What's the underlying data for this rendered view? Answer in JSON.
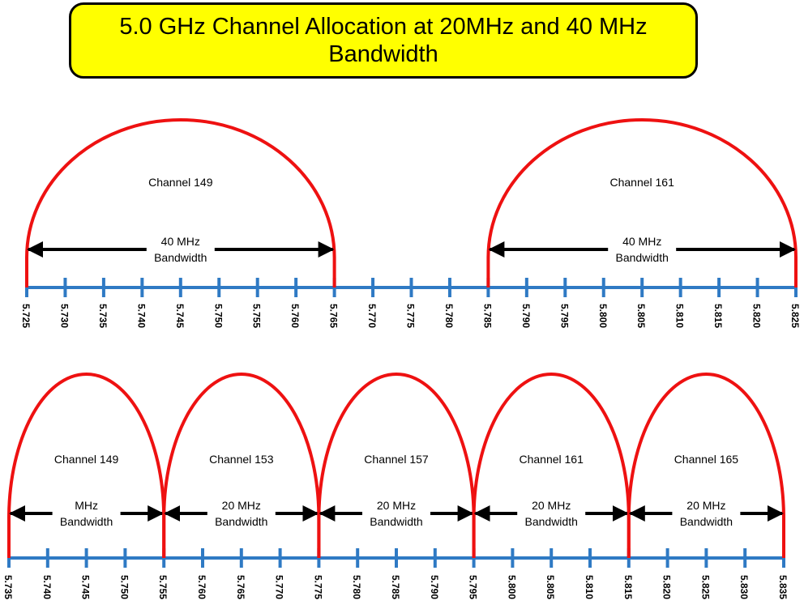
{
  "title": {
    "line1": "5.0 GHz Channel Allocation at 20MHz and 40 MHz",
    "line2": "Bandwidth"
  },
  "colors": {
    "title_background": "#ffff00",
    "arc": "#ee1111",
    "axis": "#2f7ac4",
    "arrow": "#000000",
    "text": "#000000"
  },
  "panel_top": {
    "bandwidth_mhz": 40,
    "axis_start": 5.725,
    "axis_end": 5.825,
    "tick_labels": [
      "5.725",
      "5.730",
      "5.735",
      "5.740",
      "5.745",
      "5.750",
      "5.755",
      "5.760",
      "5.765",
      "5.770",
      "5.775",
      "5.780",
      "5.785",
      "5.790",
      "5.795",
      "5.800",
      "5.805",
      "5.810",
      "5.815",
      "5.820",
      "5.825"
    ],
    "channels": [
      {
        "name": "Channel 149",
        "start": 5.725,
        "end": 5.765,
        "bw_line1": "40 MHz",
        "bw_line2": "Bandwidth"
      },
      {
        "name": "Channel 161",
        "start": 5.785,
        "end": 5.825,
        "bw_line1": "40 MHz",
        "bw_line2": "Bandwidth"
      }
    ]
  },
  "panel_bottom": {
    "bandwidth_mhz": 20,
    "axis_start": 5.735,
    "axis_end": 5.835,
    "tick_labels": [
      "5.735",
      "5.740",
      "5.745",
      "5.750",
      "5.755",
      "5.760",
      "5.765",
      "5.770",
      "5.775",
      "5.780",
      "5.785",
      "5.790",
      "5.795",
      "5.800",
      "5.805",
      "5.810",
      "5.815",
      "5.820",
      "5.825",
      "5.830",
      "5.835"
    ],
    "channels": [
      {
        "name": "Channel 149",
        "start": 5.735,
        "end": 5.755,
        "bw_line1": "MHz",
        "bw_line2": "Bandwidth"
      },
      {
        "name": "Channel 153",
        "start": 5.755,
        "end": 5.775,
        "bw_line1": "20 MHz",
        "bw_line2": "Bandwidth"
      },
      {
        "name": "Channel 157",
        "start": 5.775,
        "end": 5.795,
        "bw_line1": "20 MHz",
        "bw_line2": "Bandwidth"
      },
      {
        "name": "Channel 161",
        "start": 5.795,
        "end": 5.815,
        "bw_line1": "20 MHz",
        "bw_line2": "Bandwidth"
      },
      {
        "name": "Channel 165",
        "start": 5.815,
        "end": 5.835,
        "bw_line1": "20 MHz",
        "bw_line2": "Bandwidth"
      }
    ]
  }
}
